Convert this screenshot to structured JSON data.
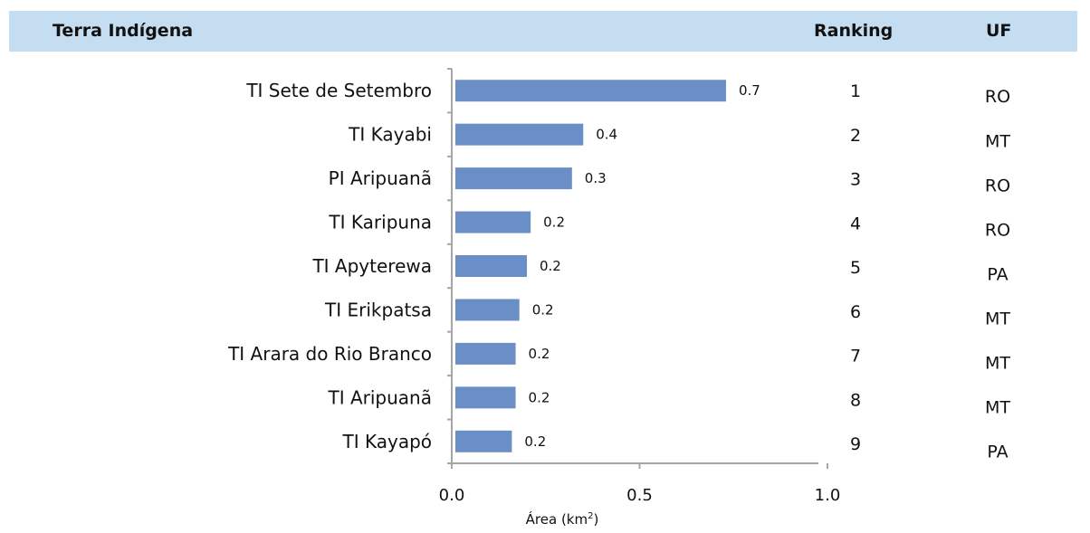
{
  "header": {
    "col_name": "Terra Indígena",
    "col_ranking": "Ranking",
    "col_uf": "UF"
  },
  "chart_data": {
    "type": "bar",
    "orientation": "horizontal",
    "categories": [
      "TI Sete de Setembro",
      "TI Kayabi",
      "PI Aripuanã",
      "TI Karipuna",
      "TI Apyterewa",
      "TI Erikpatsa",
      "TI Arara do Rio Branco",
      "TI Aripuanã",
      "TI Kayapó"
    ],
    "values": [
      0.73,
      0.35,
      0.32,
      0.21,
      0.2,
      0.18,
      0.17,
      0.17,
      0.16
    ],
    "value_labels": [
      "0.7",
      "0.4",
      "0.3",
      "0.2",
      "0.2",
      "0.2",
      "0.2",
      "0.2",
      "0.2"
    ],
    "ranking": [
      "1",
      "2",
      "3",
      "4",
      "5",
      "6",
      "7",
      "8",
      "9"
    ],
    "uf": [
      "RO",
      "MT",
      "RO",
      "RO",
      "PA",
      "MT",
      "MT",
      "MT",
      "PA"
    ],
    "x_ticks": [
      "0.0",
      "0.5",
      "1.0"
    ],
    "xlim": [
      0,
      1
    ],
    "xlabel": "Área (km",
    "xlabel_sup": "2",
    "xlabel_suffix": ")",
    "grid": false,
    "legend": "none",
    "bar_color": "#6a8fc7",
    "axis_color": "#a6a6a6",
    "header_color": "#c5ddf1"
  }
}
